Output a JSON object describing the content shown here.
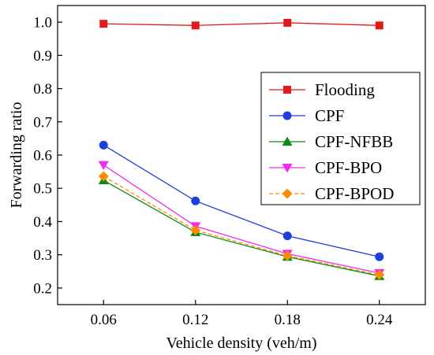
{
  "chart_data": {
    "type": "line",
    "title": "",
    "xlabel": "Vehicle density (veh/m)",
    "ylabel": "Forwarding ratio",
    "x": [
      0.06,
      0.12,
      0.18,
      0.24
    ],
    "x_tick_labels": [
      "0.06",
      "0.12",
      "0.18",
      "0.24"
    ],
    "xlim": [
      0.03,
      0.27
    ],
    "ylim": [
      0.15,
      1.05
    ],
    "y_ticks": [
      0.2,
      0.3,
      0.4,
      0.5,
      0.6,
      0.7,
      0.8,
      0.9,
      1.0
    ],
    "y_tick_labels": [
      "0.2",
      "0.3",
      "0.4",
      "0.5",
      "0.6",
      "0.7",
      "0.8",
      "0.9",
      "1.0"
    ],
    "grid": false,
    "legend_position": "right",
    "series": [
      {
        "name": "Flooding",
        "values": [
          0.995,
          0.99,
          0.998,
          0.99
        ],
        "color": "#e31a1c",
        "marker": "square",
        "dash": "solid"
      },
      {
        "name": "CPF",
        "values": [
          0.63,
          0.462,
          0.357,
          0.294
        ],
        "color": "#1f3fdb",
        "marker": "circle",
        "dash": "solid"
      },
      {
        "name": "CPF-NFBB",
        "values": [
          0.524,
          0.368,
          0.294,
          0.236
        ],
        "color": "#0f8a12",
        "marker": "triangle-up",
        "dash": "solid"
      },
      {
        "name": "CPF-BPO",
        "values": [
          0.57,
          0.386,
          0.303,
          0.245
        ],
        "color": "#ee2cee",
        "marker": "triangle-down",
        "dash": "solid"
      },
      {
        "name": "CPF-BPOD",
        "values": [
          0.536,
          0.374,
          0.297,
          0.24
        ],
        "color": "#ff8c00",
        "marker": "diamond",
        "dash": "dashed"
      }
    ]
  }
}
